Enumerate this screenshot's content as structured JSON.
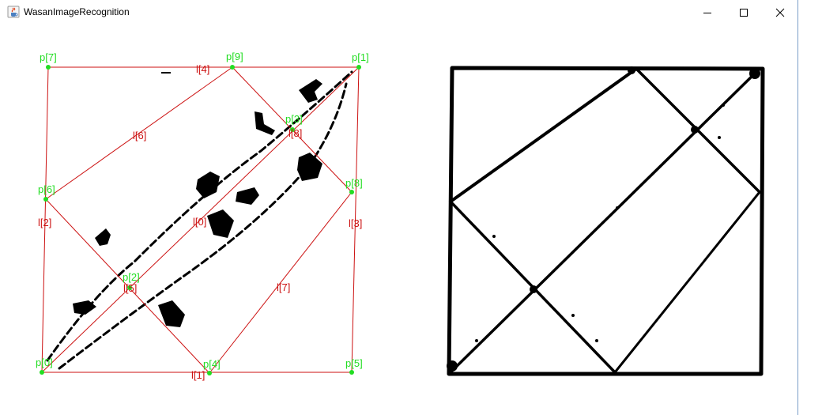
{
  "window": {
    "title": "WasanImageRecognition",
    "controls": [
      "minimize",
      "maximize",
      "close"
    ]
  },
  "icons": {
    "app": "java-cup-icon",
    "minimize": "minimize-icon",
    "maximize": "maximize-icon",
    "close": "close-icon"
  },
  "colors": {
    "point": "#22dd22",
    "line": "#cc1111",
    "ink": "#000000"
  },
  "analysis": {
    "points": [
      "p[0]",
      "p[1]",
      "p[2]",
      "p[3]",
      "p[4]",
      "p[5]",
      "p[6]",
      "p[7]",
      "p[8]",
      "p[9]"
    ],
    "lines": [
      "l[0]",
      "l[1]",
      "l[2]",
      "l[3]",
      "l[4]",
      "l[5]",
      "l[6]",
      "l[7]",
      "l[8]"
    ]
  }
}
